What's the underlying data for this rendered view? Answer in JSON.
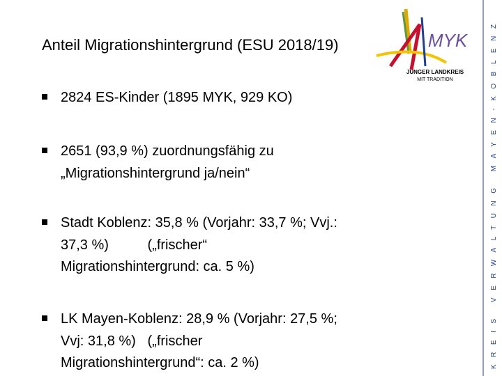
{
  "header": {
    "title": "Anteil Migrationshintergrund (ESU 2018/19)"
  },
  "logo": {
    "mark": "MYK",
    "line1": "JUNGER LANDKREIS",
    "line2": "MIT TRADITION"
  },
  "sidebar": {
    "text": "KREIS VERWALTUNG MAYEN-KOBLENZ"
  },
  "bullets": [
    {
      "lines": [
        "2824 ES-Kinder (1895 MYK, 929 KO)"
      ]
    },
    {
      "lines": [
        "2651 (93,9 %) zuordnungsfähig zu",
        "„Migrationshintergrund ja/nein“"
      ]
    },
    {
      "lines": [
        "Stadt Koblenz: 35,8 % (Vorjahr: 33,7 %; Vvj.:",
        "37,3 %)          („frischer“",
        "Migrationshintergrund: ca. 5 %)"
      ]
    },
    {
      "lines": [
        "LK Mayen-Koblenz: 28,9 % (Vorjahr: 27,5 %;",
        "Vvj: 31,8 %)   („frischer",
        "Migrationshintergrund“: ca. 2 %)"
      ]
    }
  ]
}
